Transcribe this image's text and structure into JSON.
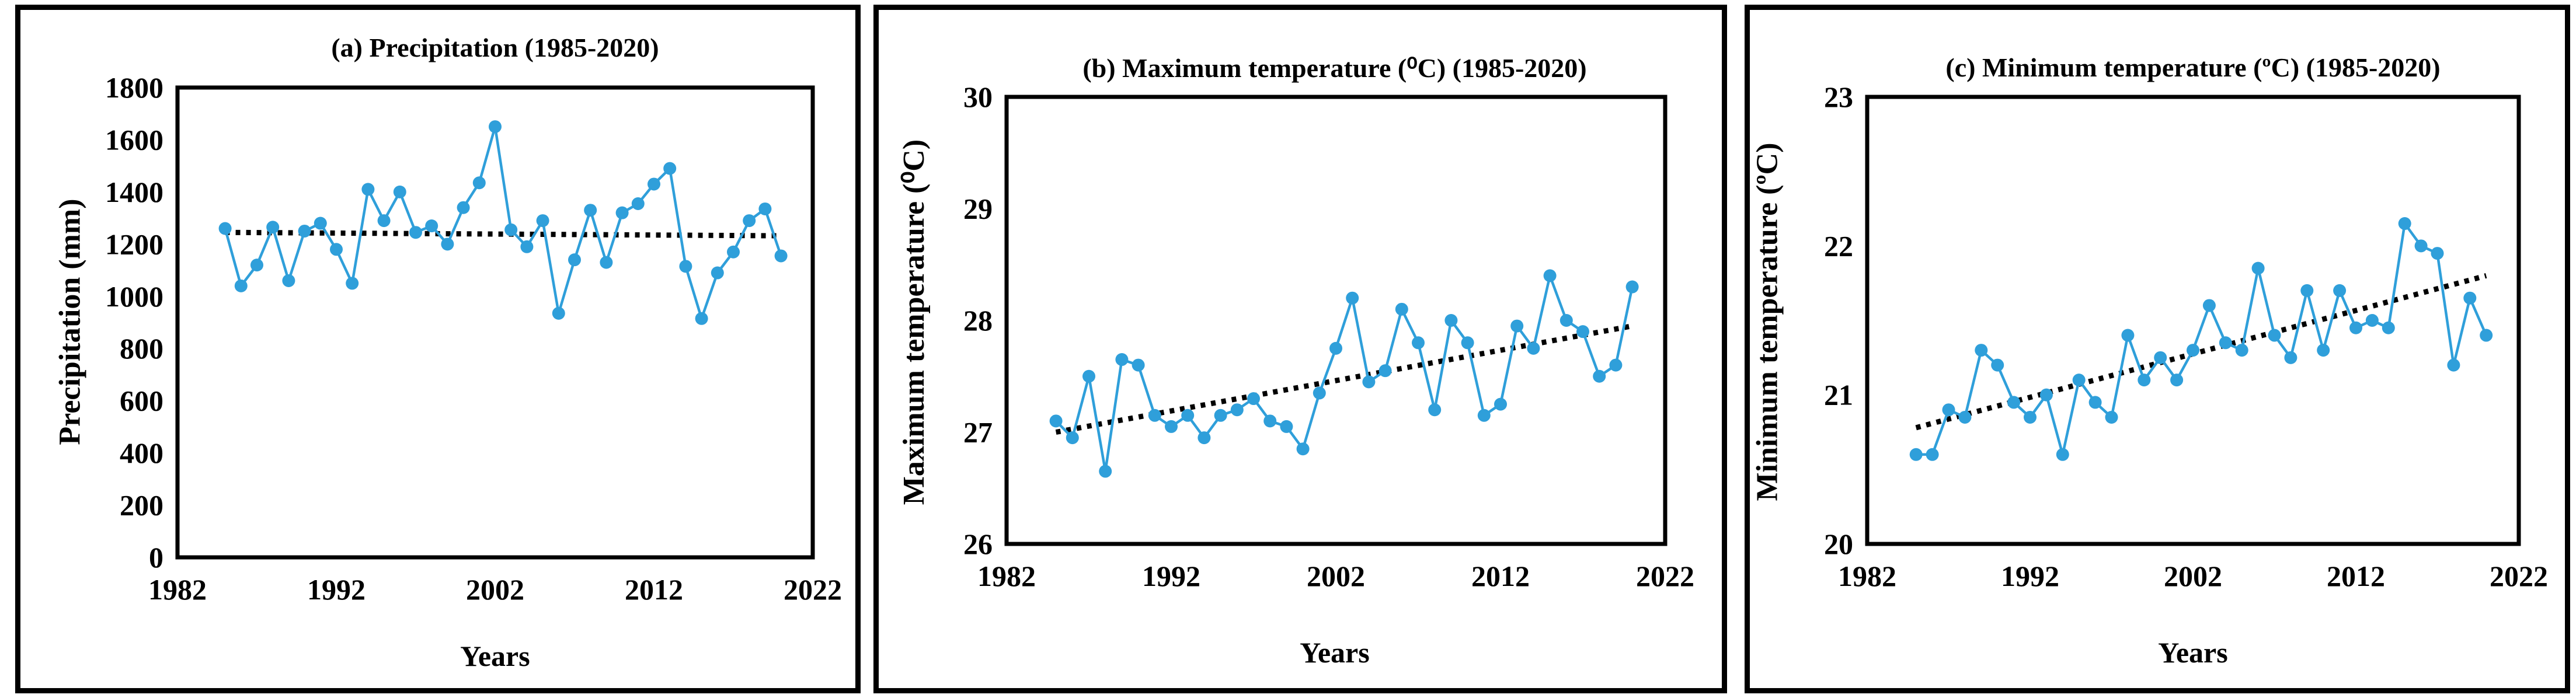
{
  "figure": {
    "background_color": "#ffffff",
    "panel_border_color": "#000000",
    "description_visible_text_only": true
  },
  "chart_data": [
    {
      "type": "line",
      "panel_label": "a",
      "title": "(a) Precipitation (1985-2020)",
      "ylabel": "Precipitation (mm)",
      "xlabel": "Years",
      "xlim": [
        1982,
        2022
      ],
      "ylim": [
        0,
        1800
      ],
      "x_ticks": [
        1982,
        1992,
        2002,
        2012,
        2022
      ],
      "y_ticks": [
        0,
        200,
        400,
        600,
        800,
        1000,
        1200,
        1400,
        1600,
        1800
      ],
      "grid": false,
      "legend": "none",
      "series_color": "#2f9fda",
      "trend_color": "#000000",
      "years": [
        1985,
        1986,
        1987,
        1988,
        1989,
        1990,
        1991,
        1992,
        1993,
        1994,
        1995,
        1996,
        1997,
        1998,
        1999,
        2000,
        2001,
        2002,
        2003,
        2004,
        2005,
        2006,
        2007,
        2008,
        2009,
        2010,
        2011,
        2012,
        2013,
        2014,
        2015,
        2016,
        2017,
        2018,
        2019,
        2020
      ],
      "values": [
        1260,
        1040,
        1120,
        1265,
        1060,
        1250,
        1280,
        1180,
        1050,
        1410,
        1290,
        1400,
        1245,
        1270,
        1200,
        1340,
        1435,
        1650,
        1255,
        1190,
        1290,
        935,
        1140,
        1330,
        1130,
        1320,
        1355,
        1430,
        1490,
        1115,
        915,
        1090,
        1170,
        1290,
        1335,
        1155
      ],
      "trend": {
        "x": [
          1985,
          2020
        ],
        "y": [
          1245,
          1232
        ]
      }
    },
    {
      "type": "line",
      "panel_label": "b",
      "title": "(b) Maximum  temperature (⁰C) (1985-2020)",
      "ylabel": "Maximum  temperature (⁰C)",
      "xlabel": "Years",
      "xlim": [
        1982,
        2022
      ],
      "ylim": [
        26,
        30
      ],
      "x_ticks": [
        1982,
        1992,
        2002,
        2012,
        2022
      ],
      "y_ticks": [
        26,
        27,
        28,
        29,
        30
      ],
      "grid": false,
      "legend": "none",
      "series_color": "#2f9fda",
      "trend_color": "#000000",
      "years": [
        1985,
        1986,
        1987,
        1988,
        1989,
        1990,
        1991,
        1992,
        1993,
        1994,
        1995,
        1996,
        1997,
        1998,
        1999,
        2000,
        2001,
        2002,
        2003,
        2004,
        2005,
        2006,
        2007,
        2008,
        2009,
        2010,
        2011,
        2012,
        2013,
        2014,
        2015,
        2016,
        2017,
        2018,
        2019,
        2020
      ],
      "values": [
        27.1,
        26.95,
        27.5,
        26.65,
        27.65,
        27.6,
        27.15,
        27.05,
        27.15,
        26.95,
        27.15,
        27.2,
        27.3,
        27.1,
        27.05,
        26.85,
        27.35,
        27.75,
        28.2,
        27.45,
        27.55,
        28.1,
        27.8,
        27.2,
        28.0,
        27.8,
        27.15,
        27.25,
        27.95,
        27.75,
        28.4,
        28.0,
        27.9,
        27.5,
        27.6,
        28.3
      ],
      "trend": {
        "x": [
          1985,
          2020
        ],
        "y": [
          27.0,
          27.95
        ]
      }
    },
    {
      "type": "line",
      "panel_label": "c",
      "title": "(c) Minimum  temperature (ºC) (1985-2020)",
      "ylabel": "Minimum  temperature (ºC)",
      "xlabel": "Years",
      "xlim": [
        1982,
        2022
      ],
      "ylim": [
        20,
        23
      ],
      "x_ticks": [
        1982,
        1992,
        2002,
        2012,
        2022
      ],
      "y_ticks": [
        20,
        21,
        22,
        23
      ],
      "grid": false,
      "legend": "none",
      "series_color": "#2f9fda",
      "trend_color": "#000000",
      "years": [
        1985,
        1986,
        1987,
        1988,
        1989,
        1990,
        1991,
        1992,
        1993,
        1994,
        1995,
        1996,
        1997,
        1998,
        1999,
        2000,
        2001,
        2002,
        2003,
        2004,
        2005,
        2006,
        2007,
        2008,
        2009,
        2010,
        2011,
        2012,
        2013,
        2014,
        2015,
        2016,
        2017,
        2018,
        2019,
        2020
      ],
      "values": [
        20.6,
        20.6,
        20.9,
        20.85,
        21.3,
        21.2,
        20.95,
        20.85,
        21.0,
        20.6,
        21.1,
        20.95,
        20.85,
        21.4,
        21.1,
        21.25,
        21.1,
        21.3,
        21.6,
        21.35,
        21.3,
        21.85,
        21.4,
        21.25,
        21.7,
        21.3,
        21.7,
        21.45,
        21.5,
        21.45,
        22.15,
        22.0,
        21.95,
        21.2,
        21.65,
        21.4
      ],
      "trend": {
        "x": [
          1985,
          2020
        ],
        "y": [
          20.78,
          21.8
        ]
      }
    }
  ]
}
